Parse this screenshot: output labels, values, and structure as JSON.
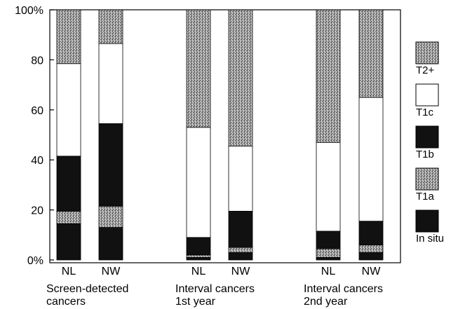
{
  "chart_data": {
    "type": "bar",
    "stacked": true,
    "title": "",
    "xlabel": "",
    "ylabel": "",
    "ylim": [
      0,
      100
    ],
    "yticks": [
      {
        "value": 0,
        "label": "0%"
      },
      {
        "value": 20,
        "label": "20"
      },
      {
        "value": 40,
        "label": "40"
      },
      {
        "value": 60,
        "label": "60"
      },
      {
        "value": 80,
        "label": "80"
      },
      {
        "value": 100,
        "label": "100%"
      }
    ],
    "groups": [
      {
        "label_line1": "Screen-detected",
        "label_line2": "cancers"
      },
      {
        "label_line1": "Interval cancers",
        "label_line2": "1st year"
      },
      {
        "label_line1": "Interval cancers",
        "label_line2": "2nd year"
      }
    ],
    "categories": [
      "NL",
      "NW",
      "NL",
      "NW",
      "NL",
      "NW"
    ],
    "series": [
      {
        "name": "In situ",
        "style": "black",
        "values": [
          14.5,
          13,
          1,
          3,
          1,
          3
        ]
      },
      {
        "name": "T1a",
        "style": "stipple",
        "values": [
          5,
          8.5,
          1,
          2,
          3.5,
          3
        ]
      },
      {
        "name": "T1b",
        "style": "black",
        "values": [
          22,
          33,
          7,
          14.5,
          7,
          9.5
        ]
      },
      {
        "name": "T1c",
        "style": "white",
        "values": [
          37,
          32,
          44,
          26,
          35.5,
          49.5
        ]
      },
      {
        "name": "T2+",
        "style": "stipple",
        "values": [
          21.5,
          13.5,
          47,
          54.5,
          53,
          35
        ]
      }
    ],
    "legend_order": [
      "T2+",
      "T1c",
      "T1b",
      "T1a",
      "In situ"
    ],
    "legend_position": "right",
    "grid": false
  }
}
